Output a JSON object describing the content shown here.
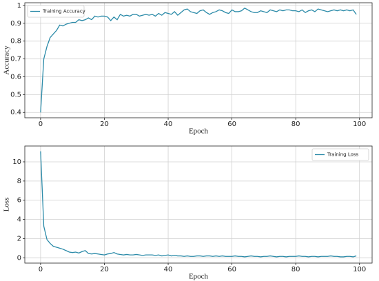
{
  "chart_data": [
    {
      "type": "line",
      "xlabel": "Epoch",
      "ylabel": "Accuracy",
      "x": [
        0,
        1,
        2,
        3,
        4,
        5,
        6,
        7,
        8,
        9,
        10,
        11,
        12,
        13,
        14,
        15,
        16,
        17,
        18,
        19,
        20,
        21,
        22,
        23,
        24,
        25,
        26,
        27,
        28,
        29,
        30,
        31,
        32,
        33,
        34,
        35,
        36,
        37,
        38,
        39,
        40,
        41,
        42,
        43,
        44,
        45,
        46,
        47,
        48,
        49,
        50,
        51,
        52,
        53,
        54,
        55,
        56,
        57,
        58,
        59,
        60,
        61,
        62,
        63,
        64,
        65,
        66,
        67,
        68,
        69,
        70,
        71,
        72,
        73,
        74,
        75,
        76,
        77,
        78,
        79,
        80,
        81,
        82,
        83,
        84,
        85,
        86,
        87,
        88,
        89,
        90,
        91,
        92,
        93,
        94,
        95,
        96,
        97,
        98,
        99
      ],
      "series": [
        {
          "name": "Training Accuracy",
          "color": "#2a8aa8",
          "values": [
            0.4,
            0.7,
            0.77,
            0.82,
            0.84,
            0.86,
            0.89,
            0.885,
            0.895,
            0.9,
            0.905,
            0.905,
            0.92,
            0.915,
            0.92,
            0.93,
            0.92,
            0.94,
            0.935,
            0.94,
            0.94,
            0.935,
            0.915,
            0.935,
            0.92,
            0.95,
            0.94,
            0.945,
            0.94,
            0.95,
            0.95,
            0.94,
            0.945,
            0.95,
            0.945,
            0.95,
            0.94,
            0.955,
            0.945,
            0.96,
            0.955,
            0.95,
            0.965,
            0.945,
            0.96,
            0.975,
            0.98,
            0.965,
            0.96,
            0.955,
            0.97,
            0.975,
            0.96,
            0.95,
            0.96,
            0.965,
            0.975,
            0.97,
            0.96,
            0.955,
            0.975,
            0.965,
            0.965,
            0.97,
            0.985,
            0.975,
            0.965,
            0.96,
            0.96,
            0.97,
            0.965,
            0.96,
            0.975,
            0.97,
            0.965,
            0.975,
            0.97,
            0.975,
            0.975,
            0.97,
            0.97,
            0.965,
            0.975,
            0.96,
            0.97,
            0.975,
            0.965,
            0.98,
            0.975,
            0.97,
            0.965,
            0.97,
            0.975,
            0.97,
            0.975,
            0.97,
            0.975,
            0.97,
            0.975,
            0.95
          ]
        }
      ],
      "xlim": [
        -4.95,
        103.95
      ],
      "ylim": [
        0.37,
        1.015
      ],
      "xticks": [
        0,
        20,
        40,
        60,
        80,
        100
      ],
      "yticks": [
        0.4,
        0.5,
        0.6,
        0.7,
        0.8,
        0.9,
        1.0
      ],
      "grid": true,
      "legend": "upper left"
    },
    {
      "type": "line",
      "xlabel": "Epoch",
      "ylabel": "Loss",
      "x": [
        0,
        1,
        2,
        3,
        4,
        5,
        6,
        7,
        8,
        9,
        10,
        11,
        12,
        13,
        14,
        15,
        16,
        17,
        18,
        19,
        20,
        21,
        22,
        23,
        24,
        25,
        26,
        27,
        28,
        29,
        30,
        31,
        32,
        33,
        34,
        35,
        36,
        37,
        38,
        39,
        40,
        41,
        42,
        43,
        44,
        45,
        46,
        47,
        48,
        49,
        50,
        51,
        52,
        53,
        54,
        55,
        56,
        57,
        58,
        59,
        60,
        61,
        62,
        63,
        64,
        65,
        66,
        67,
        68,
        69,
        70,
        71,
        72,
        73,
        74,
        75,
        76,
        77,
        78,
        79,
        80,
        81,
        82,
        83,
        84,
        85,
        86,
        87,
        88,
        89,
        90,
        91,
        92,
        93,
        94,
        95,
        96,
        97,
        98,
        99
      ],
      "series": [
        {
          "name": "Training Loss",
          "color": "#2a8aa8",
          "values": [
            11.1,
            3.3,
            1.9,
            1.5,
            1.2,
            1.1,
            1.0,
            0.9,
            0.75,
            0.6,
            0.55,
            0.6,
            0.5,
            0.65,
            0.75,
            0.45,
            0.4,
            0.45,
            0.4,
            0.35,
            0.3,
            0.4,
            0.45,
            0.55,
            0.4,
            0.35,
            0.3,
            0.35,
            0.3,
            0.3,
            0.35,
            0.3,
            0.25,
            0.3,
            0.3,
            0.3,
            0.25,
            0.3,
            0.2,
            0.25,
            0.3,
            0.2,
            0.25,
            0.2,
            0.2,
            0.15,
            0.2,
            0.15,
            0.15,
            0.2,
            0.2,
            0.15,
            0.2,
            0.2,
            0.15,
            0.2,
            0.15,
            0.2,
            0.15,
            0.15,
            0.15,
            0.2,
            0.15,
            0.15,
            0.1,
            0.15,
            0.2,
            0.15,
            0.15,
            0.1,
            0.15,
            0.15,
            0.2,
            0.15,
            0.1,
            0.15,
            0.15,
            0.1,
            0.15,
            0.15,
            0.15,
            0.2,
            0.15,
            0.15,
            0.1,
            0.15,
            0.15,
            0.1,
            0.15,
            0.15,
            0.15,
            0.2,
            0.15,
            0.15,
            0.1,
            0.1,
            0.15,
            0.15,
            0.1,
            0.2
          ]
        }
      ],
      "xlim": [
        -4.95,
        103.95
      ],
      "ylim": [
        -0.55,
        11.65
      ],
      "xticks": [
        0,
        20,
        40,
        60,
        80,
        100
      ],
      "yticks": [
        0,
        2,
        4,
        6,
        8,
        10
      ],
      "grid": true,
      "legend": "upper right"
    }
  ]
}
